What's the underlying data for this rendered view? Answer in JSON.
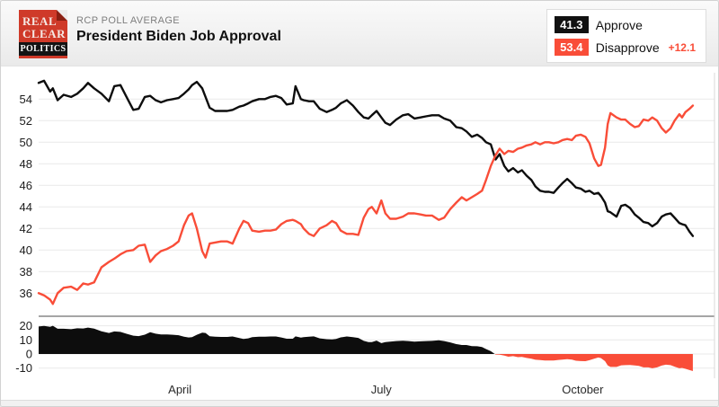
{
  "header": {
    "logo": {
      "line1": "REAL",
      "line2": "CLEAR",
      "line3": "POLITICS"
    },
    "kicker": "RCP POLL AVERAGE",
    "title": "President Biden Job Approval",
    "legend": {
      "approve": {
        "value": "41.3",
        "label": "Approve"
      },
      "disapprove": {
        "value": "53.4",
        "label": "Disapprove",
        "spread": "+12.1"
      }
    }
  },
  "colors": {
    "approve_line": "#0d0d0d",
    "disapprove_line": "#f94d38",
    "grid": "#e9e9e9",
    "separator": "#6f6f6f",
    "plot_right_border": "#d9d9d9",
    "tick_text": "#1d1d1d",
    "month_text": "#2a2a2a"
  },
  "chart_data": {
    "type": "line",
    "title": "President Biden Job Approval",
    "legend_position": "top-right",
    "grid": "horizontal-only",
    "x_unit": "percent-of-timeline",
    "x_pct": [
      0,
      0.8,
      1.7,
      2.1,
      2.8,
      3.7,
      4.8,
      5.7,
      6.6,
      7.3,
      8.2,
      9.3,
      10.4,
      11.2,
      12.1,
      13,
      14,
      14.8,
      15.7,
      16.5,
      17.3,
      18.1,
      19,
      19.9,
      20.7,
      21.5,
      22.2,
      22.7,
      23.4,
      24.2,
      24.7,
      25.3,
      26.1,
      27,
      27.9,
      28.7,
      29.7,
      30.3,
      31,
      31.6,
      32.6,
      33.5,
      34.3,
      35.1,
      35.9,
      36.7,
      37.6,
      38,
      38.8,
      39.2,
      40,
      40.7,
      41.6,
      42.6,
      43.4,
      44,
      44.7,
      45.6,
      46.5,
      47.3,
      48.1,
      48.8,
      49.3,
      50,
      50.7,
      51.3,
      52,
      52.9,
      53.9,
      54.7,
      55.6,
      56.5,
      57.3,
      58.2,
      59.2,
      60,
      60.9,
      61.8,
      62.6,
      63.3,
      64.1,
      64.9,
      65.6,
      66.2,
      66.9,
      67.6,
      68.2,
      68.9,
      69.5,
      70.2,
      70.9,
      71.5,
      72.2,
      72.9,
      73.5,
      74.2,
      74.9,
      75.5,
      76.2,
      76.9,
      77.5,
      78.2,
      78.9,
      79.5,
      80.2,
      80.9,
      81.5,
      82.2,
      82.8,
      83.2,
      83.8,
      84.2,
      84.6,
      85.5,
      86.2,
      86.8,
      87.5,
      88.2,
      88.8,
      89.5,
      90.2,
      90.8,
      91.5,
      92.2,
      92.8,
      93.5,
      94.1,
      94.8,
      95.2,
      95.7,
      96.3,
      96.8
    ],
    "series": [
      {
        "name": "Approve",
        "color": "#0d0d0d",
        "current": 41.3,
        "values": [
          55.5,
          55.7,
          54.7,
          55.0,
          53.9,
          54.4,
          54.2,
          54.5,
          55.0,
          55.5,
          55.0,
          54.5,
          53.8,
          55.2,
          55.3,
          54.2,
          53.0,
          53.1,
          54.2,
          54.3,
          53.9,
          53.7,
          53.9,
          54.0,
          54.1,
          54.5,
          54.9,
          55.3,
          55.6,
          55.0,
          54.2,
          53.2,
          52.9,
          52.9,
          52.9,
          53.0,
          53.3,
          53.4,
          53.6,
          53.8,
          54.0,
          54.0,
          54.2,
          54.3,
          54.1,
          53.5,
          53.6,
          55.2,
          54.0,
          53.9,
          53.8,
          53.8,
          53.1,
          52.8,
          53.0,
          53.2,
          53.6,
          53.9,
          53.4,
          52.8,
          52.3,
          52.2,
          52.5,
          52.9,
          52.3,
          51.8,
          51.6,
          52.1,
          52.5,
          52.6,
          52.2,
          52.3,
          52.4,
          52.5,
          52.5,
          52.2,
          52.0,
          51.4,
          51.3,
          51.0,
          50.5,
          50.7,
          50.4,
          50.0,
          49.8,
          48.4,
          48.9,
          47.8,
          47.3,
          47.6,
          47.2,
          47.4,
          46.9,
          46.5,
          45.9,
          45.5,
          45.4,
          45.4,
          45.3,
          45.8,
          46.2,
          46.6,
          46.2,
          45.8,
          45.7,
          45.4,
          45.5,
          45.2,
          45.3,
          45.0,
          44.4,
          43.6,
          43.5,
          43.1,
          44.1,
          44.2,
          43.9,
          43.3,
          43.0,
          42.6,
          42.5,
          42.2,
          42.5,
          43.1,
          43.3,
          43.4,
          43.0,
          42.5,
          42.4,
          42.3,
          41.7,
          41.3
        ]
      },
      {
        "name": "Disapprove",
        "color": "#f94d38",
        "current": 53.4,
        "values": [
          36.0,
          35.8,
          35.4,
          35.0,
          36.0,
          36.5,
          36.6,
          36.3,
          36.9,
          36.8,
          37.0,
          38.4,
          38.9,
          39.2,
          39.6,
          39.9,
          40.0,
          40.4,
          40.5,
          38.9,
          39.5,
          39.9,
          40.1,
          40.4,
          40.8,
          42.3,
          43.2,
          43.4,
          42.0,
          39.9,
          39.3,
          40.6,
          40.7,
          40.8,
          40.8,
          40.6,
          42.0,
          42.7,
          42.5,
          41.8,
          41.7,
          41.8,
          41.8,
          41.9,
          42.4,
          42.7,
          42.8,
          42.7,
          42.4,
          42.0,
          41.5,
          41.3,
          42.0,
          42.3,
          42.7,
          42.5,
          41.8,
          41.5,
          41.5,
          41.4,
          43.0,
          43.8,
          44.0,
          43.4,
          44.6,
          43.4,
          42.9,
          42.9,
          43.1,
          43.4,
          43.4,
          43.3,
          43.2,
          43.2,
          42.8,
          43.0,
          43.8,
          44.4,
          44.9,
          44.6,
          44.9,
          45.2,
          45.5,
          46.5,
          47.8,
          48.8,
          49.4,
          48.9,
          49.2,
          49.1,
          49.4,
          49.5,
          49.7,
          49.8,
          50.0,
          49.8,
          50.0,
          50.0,
          49.9,
          50.0,
          50.2,
          50.3,
          50.2,
          50.6,
          50.7,
          50.5,
          49.9,
          48.5,
          47.8,
          47.9,
          49.5,
          51.7,
          52.7,
          52.3,
          52.1,
          52.1,
          51.7,
          51.4,
          51.5,
          52.1,
          52.0,
          52.3,
          52.0,
          51.3,
          50.9,
          51.3,
          52.0,
          52.6,
          52.3,
          52.8,
          53.1,
          53.4
        ]
      }
    ],
    "spread": {
      "definition": "Approve minus Disapprove",
      "current_label": "+12.1",
      "positive_color": "#0d0d0d",
      "negative_color": "#f94d38"
    },
    "main_axis": {
      "ticks": [
        54,
        52,
        50,
        48,
        46,
        44,
        42,
        40,
        38,
        36
      ],
      "range": [
        34,
        56.5
      ]
    },
    "spread_axis": {
      "ticks": [
        20,
        10,
        0,
        -10
      ],
      "range": [
        -17,
        26.5
      ]
    },
    "x_axis": {
      "labels": [
        {
          "text": "April",
          "pct": 20.9
        },
        {
          "text": "July",
          "pct": 50.7
        },
        {
          "text": "October",
          "pct": 80.5
        }
      ]
    }
  }
}
